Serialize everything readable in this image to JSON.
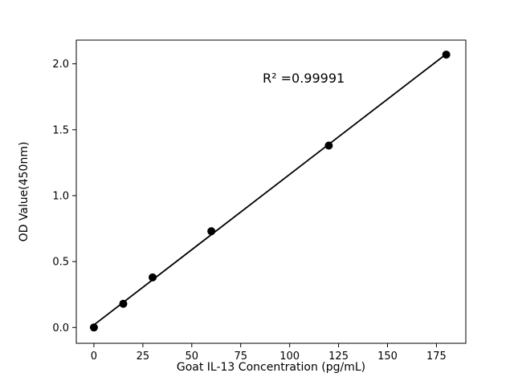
{
  "chart_data": {
    "type": "scatter",
    "title": "",
    "xlabel": "Goat IL-13 Concentration (pg/mL)",
    "ylabel": "OD Value(450nm)",
    "annotation": "R² =0.99991",
    "r_squared": 0.99991,
    "x": [
      0,
      15,
      30,
      60,
      120,
      180
    ],
    "y": [
      0.0,
      0.18,
      0.38,
      0.73,
      1.38,
      2.07
    ],
    "fit_line": true,
    "xlim": [
      -9,
      190
    ],
    "ylim": [
      -0.12,
      2.18
    ],
    "xticks": [
      0,
      25,
      50,
      75,
      100,
      125,
      150,
      175
    ],
    "xtick_labels": [
      "0",
      "25",
      "50",
      "75",
      "100",
      "125",
      "150",
      "175"
    ],
    "yticks": [
      0.0,
      0.5,
      1.0,
      1.5,
      2.0
    ],
    "ytick_labels": [
      "0.0",
      "0.5",
      "1.0",
      "1.5",
      "2.0"
    ],
    "grid": false,
    "legend_position": "none",
    "marker_color": "#000000",
    "line_color": "#000000",
    "background_color": "#ffffff"
  }
}
